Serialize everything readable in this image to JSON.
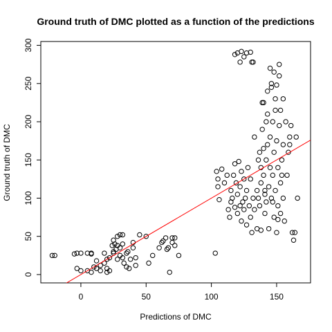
{
  "chart_data": {
    "type": "scatter",
    "title": "Ground truth of DMC plotted as a function of the predictions",
    "x_label": "Predictions of DMC",
    "y_label": "Ground truth of DMC",
    "xlim": [
      -30.7,
      176
    ],
    "ylim": [
      -10.9,
      305
    ],
    "xticks": [
      0,
      50,
      100,
      150
    ],
    "yticks": [
      0,
      50,
      100,
      150,
      200,
      250,
      300
    ],
    "color": "#000000",
    "reference_line": {
      "intercept": 0,
      "slope": 1,
      "color": "#ff0000"
    },
    "x": [
      -20,
      -22,
      -5,
      -3,
      0,
      5,
      8,
      -3,
      0,
      5,
      8,
      10,
      12,
      15,
      15,
      18,
      20,
      20,
      22,
      22,
      24,
      25,
      25,
      27,
      28,
      28,
      30,
      30,
      30,
      32,
      32,
      33,
      35,
      35,
      37,
      38,
      40,
      40,
      42,
      42,
      45,
      50,
      52,
      55,
      60,
      62,
      63,
      65,
      66,
      67,
      68,
      70,
      70,
      72,
      72,
      75,
      8,
      12,
      26,
      28,
      25,
      32,
      36,
      20,
      18,
      103,
      104,
      105,
      105,
      106,
      108,
      110,
      112,
      113,
      114,
      115,
      115,
      116,
      117,
      118,
      118,
      119,
      120,
      120,
      121,
      122,
      122,
      123,
      123,
      124,
      125,
      125,
      126,
      127,
      127,
      128,
      129,
      130,
      130,
      131,
      132,
      133,
      133,
      135,
      135,
      118,
      120,
      122,
      123,
      125,
      127,
      130,
      131,
      132,
      136,
      137,
      138,
      138,
      139,
      140,
      140,
      141,
      141,
      142,
      142,
      143,
      143,
      144,
      144,
      145,
      145,
      145,
      146,
      146,
      147,
      147,
      148,
      148,
      149,
      149,
      150,
      150,
      151,
      151,
      152,
      152,
      153,
      153,
      154,
      155,
      155,
      156,
      157,
      158,
      160,
      160,
      162,
      163,
      164,
      165,
      166,
      152,
      148,
      146,
      139,
      138,
      140,
      142,
      147,
      150,
      153,
      155,
      159,
      161,
      136,
      137,
      141,
      143,
      149,
      151,
      154
    ],
    "values": [
      25,
      25,
      27,
      28,
      28,
      28,
      27,
      8,
      5,
      5,
      3,
      10,
      8,
      12,
      5,
      15,
      8,
      3,
      5,
      22,
      38,
      30,
      45,
      33,
      50,
      20,
      52,
      35,
      25,
      40,
      52,
      15,
      10,
      28,
      8,
      20,
      42,
      35,
      12,
      22,
      52,
      50,
      15,
      25,
      35,
      42,
      44,
      48,
      33,
      35,
      3,
      42,
      48,
      48,
      38,
      25,
      28,
      18,
      40,
      38,
      28,
      22,
      30,
      20,
      28,
      28,
      135,
      125,
      115,
      98,
      138,
      120,
      130,
      85,
      75,
      110,
      95,
      100,
      130,
      88,
      145,
      120,
      80,
      105,
      148,
      90,
      115,
      70,
      135,
      95,
      125,
      85,
      100,
      110,
      65,
      140,
      90,
      75,
      125,
      55,
      100,
      85,
      180,
      60,
      110,
      288,
      290,
      278,
      292,
      285,
      290,
      291,
      278,
      278,
      100,
      90,
      120,
      140,
      190,
      130,
      225,
      80,
      110,
      150,
      95,
      170,
      210,
      115,
      60,
      270,
      180,
      140,
      100,
      250,
      200,
      130,
      160,
      75,
      230,
      110,
      55,
      175,
      140,
      90,
      260,
      195,
      120,
      80,
      150,
      170,
      100,
      70,
      200,
      130,
      180,
      170,
      55,
      45,
      55,
      180,
      100,
      275,
      265,
      245,
      225,
      58,
      165,
      200,
      95,
      248,
      215,
      230,
      160,
      195,
      150,
      160,
      105,
      240,
      215,
      72,
      130
    ]
  }
}
